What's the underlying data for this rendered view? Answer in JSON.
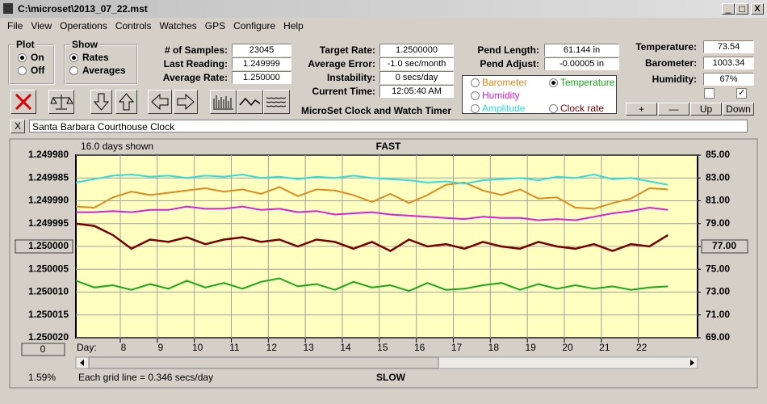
{
  "window": {
    "title": "C:\\microset\\2013_07_22.mst",
    "controls": [
      "_",
      "□",
      "X"
    ]
  },
  "menu": [
    "File",
    "View",
    "Operations",
    "Controls",
    "Watches",
    "GPS",
    "Configure",
    "Help"
  ],
  "plot_group": {
    "title": "Plot",
    "options": [
      {
        "label": "On",
        "checked": true
      },
      {
        "label": "Off",
        "checked": false
      }
    ]
  },
  "show_group": {
    "title": "Show",
    "options": [
      {
        "label": "Rates",
        "checked": true
      },
      {
        "label": "Averages",
        "checked": false
      }
    ]
  },
  "readings_1": [
    {
      "label": "# of Samples:",
      "value": "23045"
    },
    {
      "label": "Last Reading:",
      "value": "1.249999"
    },
    {
      "label": "Average Rate:",
      "value": "1.250000"
    }
  ],
  "readings_2": [
    {
      "label": "Target Rate:",
      "value": "1.2500000"
    },
    {
      "label": "Average Error:",
      "value": "-1.0 sec/month"
    },
    {
      "label": "Instability:",
      "value": "0 secs/day"
    },
    {
      "label": "Current Time:",
      "value": "12:05:40 AM"
    }
  ],
  "pendulum": [
    {
      "label": "Pend Length:",
      "value": "61.144 in"
    },
    {
      "label": "Pend Adjust:",
      "value": "-0.00005 in"
    }
  ],
  "environment": [
    {
      "label": "Temperature:",
      "value": "73.54"
    },
    {
      "label": "Barometer:",
      "value": "1003.34"
    },
    {
      "label": "Humidity:",
      "value": "67%"
    }
  ],
  "environment_checks": [
    false,
    true
  ],
  "scale_buttons": [
    "+",
    "—",
    "Up",
    "Down"
  ],
  "timer_name": "MicroSet Clock and Watch Timer",
  "clear_button": "X",
  "clock_name": "Santa Barbara Courthouse Clock",
  "chart_data": {
    "type": "line",
    "top_label": "FAST",
    "bottom_label": "SLOW",
    "days_shown": "16.0 days shown",
    "x_label": "Day:",
    "footer": "Each grid line = 0.346 secs/day",
    "zoom": "1.59%",
    "scroll_readout": "0",
    "cursor_readout": "77.00",
    "grid": true,
    "plot_background": "#ffffc0",
    "x": [
      6.8,
      7.3,
      7.8,
      8.3,
      8.8,
      9.3,
      9.8,
      10.3,
      10.8,
      11.3,
      11.8,
      12.3,
      12.8,
      13.3,
      13.8,
      14.3,
      14.8,
      15.3,
      15.8,
      16.3,
      16.8,
      17.3,
      17.8,
      18.3,
      18.8,
      19.3,
      19.8,
      20.3,
      20.8,
      21.3,
      21.8,
      22.3,
      22.8
    ],
    "xlim": [
      6.8,
      23.6
    ],
    "xticks": [
      8,
      9,
      10,
      11,
      12,
      13,
      14,
      15,
      16,
      17,
      18,
      19,
      20,
      21,
      22
    ],
    "ylim": [
      1.25002,
      1.24998
    ],
    "yticks": [
      {
        "value": 1.24998,
        "label": "1.249980"
      },
      {
        "value": 1.249985,
        "label": "1.249985"
      },
      {
        "value": 1.24999,
        "label": "1.249990"
      },
      {
        "value": 1.249995,
        "label": "1.249995"
      },
      {
        "value": 1.25,
        "label": "1.250000"
      },
      {
        "value": 1.250005,
        "label": "1.250005"
      },
      {
        "value": 1.25001,
        "label": "1.250010"
      },
      {
        "value": 1.250015,
        "label": "1.250015"
      },
      {
        "value": 1.25002,
        "label": "1.250020"
      }
    ],
    "y2lim": [
      69,
      85
    ],
    "y2ticks": [
      {
        "value": 85,
        "label": "85.00"
      },
      {
        "value": 83,
        "label": "83.00"
      },
      {
        "value": 81,
        "label": "81.00"
      },
      {
        "value": 79,
        "label": "79.00"
      },
      {
        "value": 77,
        "label": "77.00"
      },
      {
        "value": 75,
        "label": "75.00"
      },
      {
        "value": 73,
        "label": "73.00"
      },
      {
        "value": 71,
        "label": "71.00"
      },
      {
        "value": 69,
        "label": "69.00"
      }
    ],
    "series": [
      {
        "name": "Barometer",
        "color": "#e08a1e",
        "axis": "y2",
        "values": [
          80.5,
          80.4,
          81.3,
          81.8,
          81.5,
          81.7,
          81.9,
          82.1,
          81.8,
          82.0,
          81.6,
          82.2,
          81.4,
          82.0,
          81.9,
          81.5,
          80.9,
          81.6,
          80.8,
          81.5,
          82.4,
          82.6,
          81.9,
          81.5,
          82.0,
          81.2,
          81.3,
          80.4,
          80.3,
          80.8,
          81.2,
          82.1,
          82.0
        ]
      },
      {
        "name": "Temperature",
        "color": "#1aa81a",
        "axis": "y2",
        "selected": true,
        "values": [
          74.0,
          73.4,
          73.6,
          73.2,
          73.7,
          73.3,
          74.0,
          73.4,
          73.8,
          73.3,
          73.9,
          74.2,
          73.5,
          73.7,
          73.2,
          73.9,
          73.4,
          73.6,
          73.1,
          73.8,
          73.2,
          73.3,
          73.6,
          73.8,
          73.2,
          73.7,
          73.3,
          73.6,
          73.3,
          73.5,
          73.2,
          73.4,
          73.5
        ]
      },
      {
        "name": "Humidity",
        "color": "#d820d8",
        "axis": "y2",
        "values": [
          80.0,
          80.0,
          80.1,
          80.0,
          80.2,
          80.2,
          80.5,
          80.3,
          80.3,
          80.5,
          80.2,
          80.3,
          80.0,
          80.1,
          79.8,
          79.9,
          80.0,
          79.8,
          79.7,
          79.6,
          79.5,
          79.4,
          79.6,
          79.5,
          79.5,
          79.3,
          79.4,
          79.3,
          79.6,
          79.9,
          80.1,
          80.4,
          80.2
        ]
      },
      {
        "name": "Amplitude",
        "color": "#30dcdc",
        "axis": "y2",
        "values": [
          82.6,
          82.9,
          83.2,
          83.3,
          83.1,
          83.2,
          83.0,
          83.2,
          83.1,
          83.3,
          83.0,
          83.1,
          82.9,
          83.1,
          83.0,
          83.2,
          83.0,
          82.9,
          82.8,
          82.6,
          82.7,
          82.5,
          82.8,
          82.9,
          83.0,
          82.8,
          83.1,
          83.0,
          83.3,
          82.9,
          83.0,
          82.7,
          82.4
        ]
      },
      {
        "name": "Clock rate",
        "color": "#7a0000",
        "values": [
          1.249995,
          1.2499955,
          1.2499975,
          1.2500005,
          1.2499985,
          1.249999,
          1.249998,
          1.2499995,
          1.2499985,
          1.249998,
          1.249999,
          1.2499985,
          1.25,
          1.2499985,
          1.249999,
          1.2500005,
          1.249999,
          1.250001,
          1.2499985,
          1.25,
          1.2499995,
          1.2500005,
          1.249999,
          1.25,
          1.2500005,
          1.249999,
          1.25,
          1.2500005,
          1.2499995,
          1.250001,
          1.2499995,
          1.25,
          1.2499975
        ]
      }
    ]
  }
}
